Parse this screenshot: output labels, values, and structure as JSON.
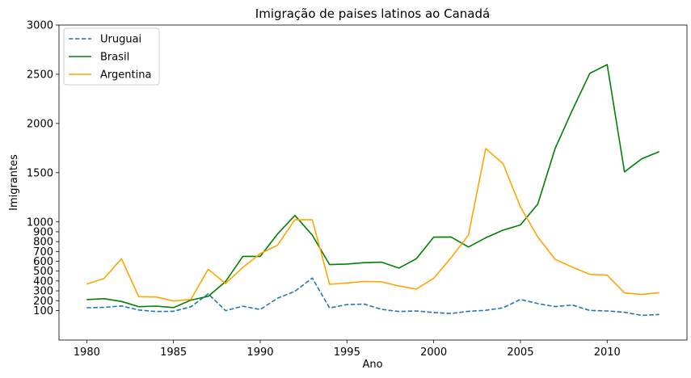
{
  "chart_data": {
    "type": "line",
    "title": "Imigração de paises latinos ao Canadá",
    "xlabel": "Ano",
    "ylabel": "Imigrantes",
    "xlim": [
      1978.4,
      2014.6
    ],
    "ylim": [
      -200,
      3000
    ],
    "x_ticks": [
      1980,
      1985,
      1990,
      1995,
      2000,
      2005,
      2010
    ],
    "y_ticks": [
      100,
      200,
      300,
      400,
      500,
      600,
      700,
      800,
      900,
      1000,
      1500,
      2000,
      2500,
      3000
    ],
    "legend_position": "top-left",
    "grid": false,
    "x": [
      1980,
      1981,
      1982,
      1983,
      1984,
      1985,
      1986,
      1987,
      1988,
      1989,
      1990,
      1991,
      1992,
      1993,
      1994,
      1995,
      1996,
      1997,
      1998,
      1999,
      2000,
      2001,
      2002,
      2003,
      2004,
      2005,
      2006,
      2007,
      2008,
      2009,
      2010,
      2011,
      2012,
      2013
    ],
    "series": [
      {
        "name": "Uruguai",
        "color": "#1f77b4",
        "dash": "dashed",
        "values": [
          128,
          132,
          146,
          105,
          90,
          92,
          137,
          269,
          99,
          144,
          110,
          225,
          295,
          430,
          126,
          160,
          165,
          112,
          90,
          95,
          80,
          70,
          92,
          102,
          127,
          213,
          170,
          140,
          155,
          100,
          95,
          82,
          50,
          60
        ]
      },
      {
        "name": "Brasil",
        "color": "#008000",
        "dash": "solid",
        "values": [
          211,
          220,
          192,
          139,
          145,
          130,
          205,
          244,
          394,
          650,
          650,
          877,
          1066,
          866,
          566,
          572,
          586,
          591,
          531,
          626,
          845,
          847,
          745,
          839,
          917,
          969,
          1181,
          1746,
          2138,
          2509,
          2598,
          1508,
          1642,
          1714
        ]
      },
      {
        "name": "Argentina",
        "color": "#ffa500",
        "dash": "solid",
        "values": [
          368,
          426,
          626,
          241,
          237,
          196,
          213,
          519,
          374,
          538,
          678,
          763,
          1023,
          1022,
          366,
          380,
          396,
          391,
          349,
          318,
          427,
          635,
          865,
          1745,
          1591,
          1153,
          847,
          620,
          540,
          467,
          459,
          278,
          263,
          282
        ]
      }
    ]
  }
}
